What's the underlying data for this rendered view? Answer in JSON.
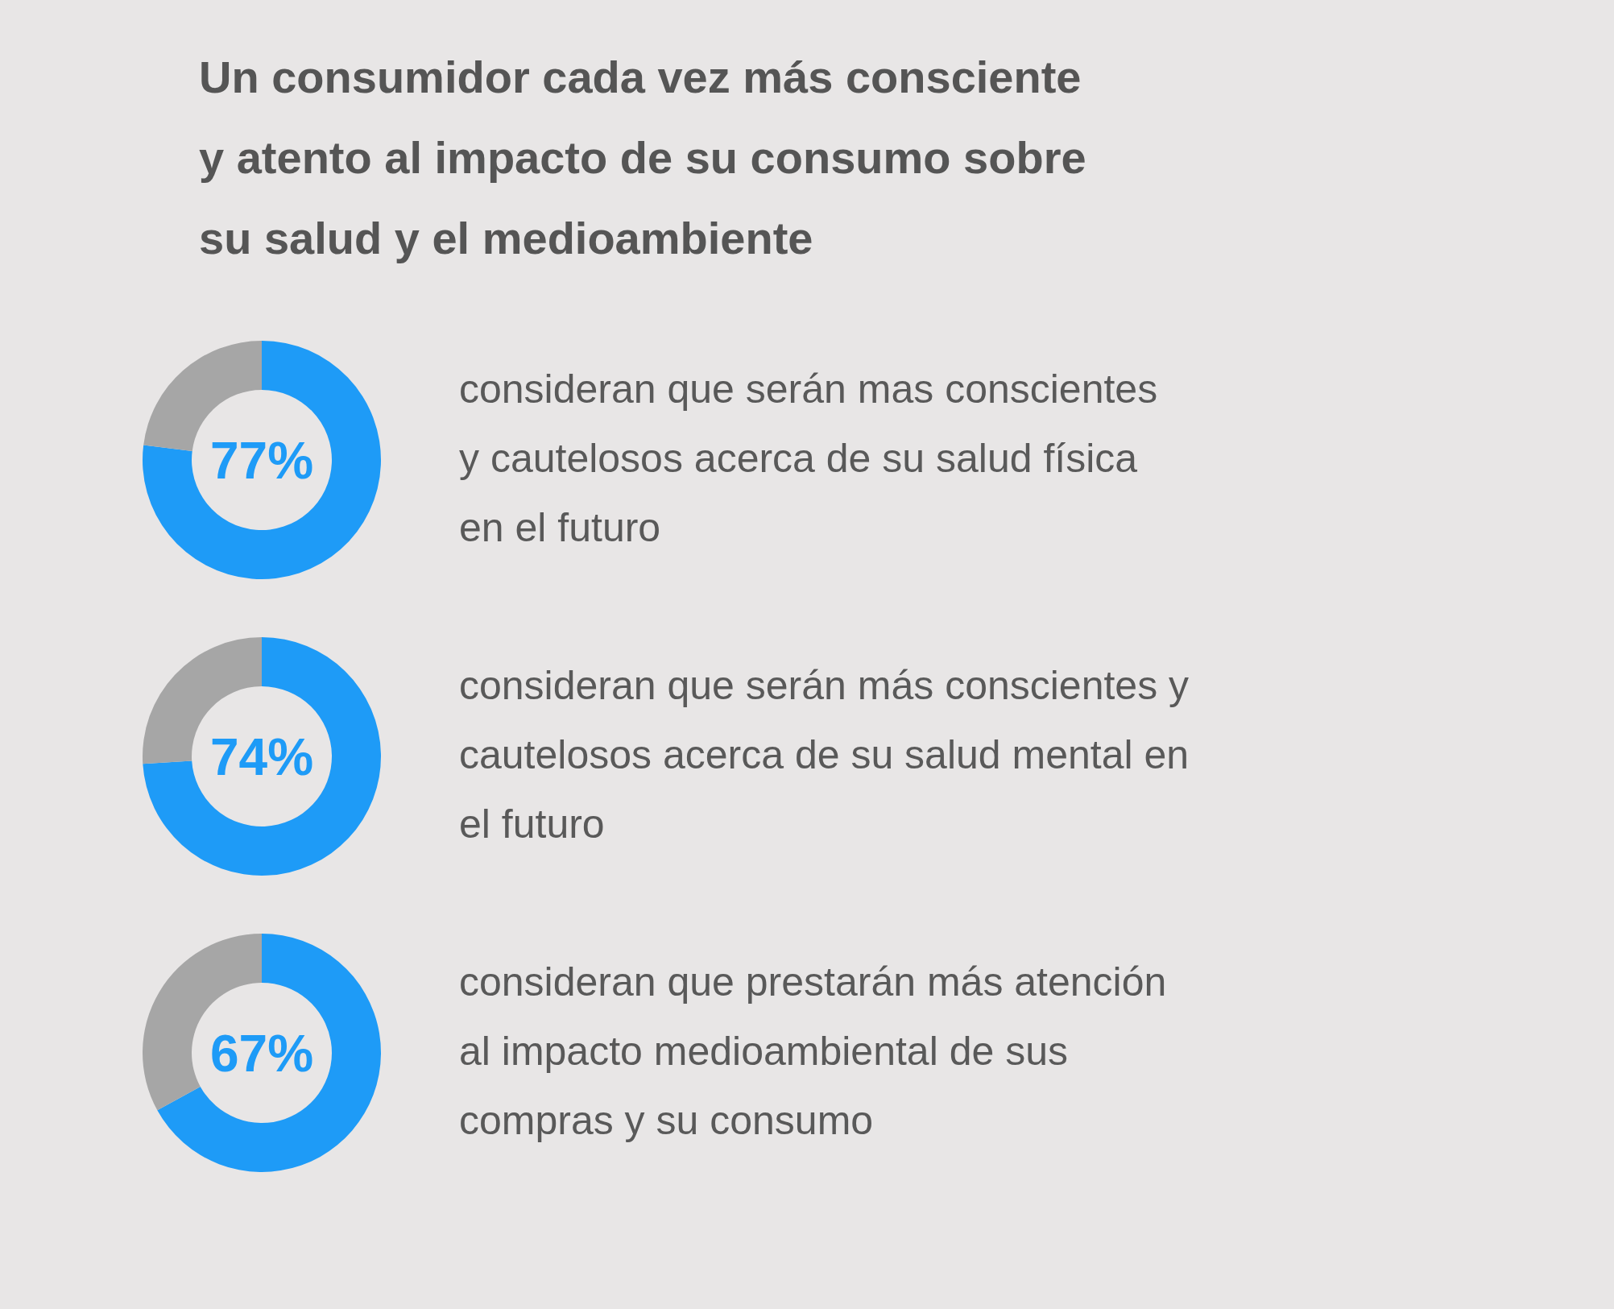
{
  "chart_data": [
    {
      "type": "donut",
      "title": "Un consumidor cada vez más consciente\ny atento al impacto de su consumo sobre\nsu salud y el medioambiente",
      "categories": [
        null,
        null
      ],
      "values": [
        77,
        23
      ],
      "colors": [
        "#1e9bf7",
        "#a6a6a6"
      ],
      "value_labels": [
        "77%",
        null
      ],
      "annotations": [
        "consideran que serán mas conscientes\ny cautelosos acerca de su salud física\nen el futuro"
      ]
    },
    {
      "type": "donut",
      "categories": [
        null,
        null
      ],
      "values": [
        74,
        26
      ],
      "colors": [
        "#1e9bf7",
        "#a6a6a6"
      ],
      "value_labels": [
        "74%",
        null
      ],
      "annotations": [
        "consideran que serán más conscientes y\ncautelosos acerca de su salud mental en\nel futuro"
      ]
    },
    {
      "type": "donut",
      "categories": [
        null,
        null
      ],
      "values": [
        67,
        33
      ],
      "colors": [
        "#1e9bf7",
        "#a6a6a6"
      ],
      "value_labels": [
        "67%",
        null
      ],
      "annotations": [
        "consideran que prestarán más atención\nal impacto medioambiental de sus\ncompras y su consumo"
      ]
    }
  ]
}
